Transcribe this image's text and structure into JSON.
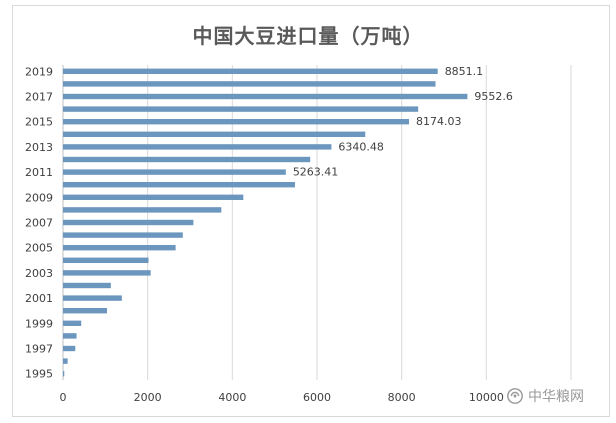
{
  "chart_data": {
    "type": "bar",
    "orientation": "horizontal",
    "title": "中国大豆进口量（万吨）",
    "categories": [
      "1995",
      "1996",
      "1997",
      "1998",
      "1999",
      "2000",
      "2001",
      "2002",
      "2003",
      "2004",
      "2005",
      "2006",
      "2007",
      "2008",
      "2009",
      "2010",
      "2011",
      "2012",
      "2013",
      "2014",
      "2015",
      "2016",
      "2017",
      "2018",
      "2019"
    ],
    "values": [
      30,
      110,
      290,
      320,
      430,
      1040,
      1390,
      1130,
      2070,
      2020,
      2660,
      2830,
      3080,
      3740,
      4260,
      5480,
      5263.41,
      5840,
      6340.48,
      7140,
      8174.03,
      8390,
      9552.6,
      8800,
      8851.1
    ],
    "data_labels": {
      "2011": "5263.41",
      "2013": "6340.48",
      "2015": "8174.03",
      "2017": "9552.6",
      "2019": "8851.1"
    },
    "xlim": [
      0,
      12000
    ],
    "x_ticks": [
      "0",
      "2000",
      "4000",
      "6000",
      "8000",
      "10000"
    ],
    "y_tick_labels": [
      "1995",
      "1997",
      "1999",
      "2001",
      "2003",
      "2005",
      "2007",
      "2009",
      "2011",
      "2013",
      "2015",
      "2017",
      "2019"
    ],
    "grid": true,
    "colors": {
      "bar": "#6b96bd",
      "grid": "#d9d9d9",
      "axis_text": "#404040",
      "title": "#595959"
    }
  },
  "watermark": {
    "text": "中华粮网",
    "icon": "wechat-channel-icon"
  }
}
